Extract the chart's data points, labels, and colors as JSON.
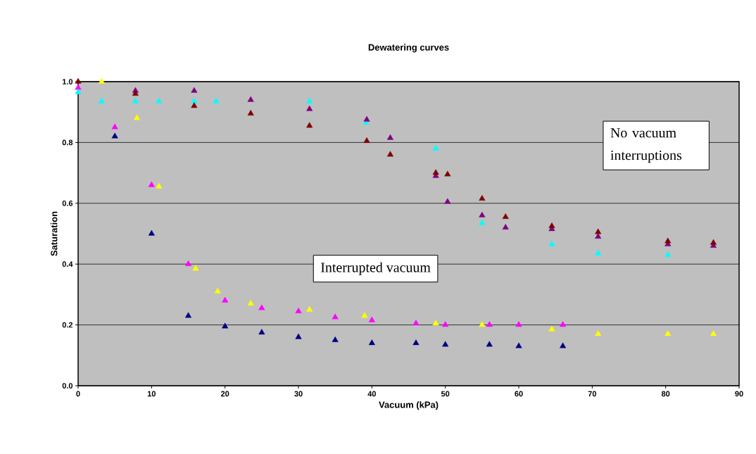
{
  "chart_data": {
    "type": "scatter",
    "title": "Dewatering curves",
    "xlabel": "Vacuum (kPa)",
    "ylabel": "Saturation",
    "marker": "triangle",
    "grid": "y",
    "xlim": [
      0,
      90
    ],
    "xticks": [
      0,
      10,
      20,
      30,
      40,
      50,
      60,
      70,
      80,
      90
    ],
    "ylim": [
      0,
      1
    ],
    "yticks": [
      {
        "value": 0,
        "label": "0.0"
      },
      0.2,
      0.4,
      0.6,
      0.8,
      {
        "value": 1,
        "label": "1.0"
      }
    ],
    "annotations": [
      "No vacuum interruptions",
      "Interrupted vacuum"
    ],
    "series": [
      {
        "color": "#000080",
        "x": [
          5,
          10,
          15,
          20,
          25,
          30,
          35,
          40,
          46,
          50,
          56,
          60,
          66
        ],
        "values": [
          0.82,
          0.5,
          0.23,
          0.195,
          0.175,
          0.16,
          0.15,
          0.14,
          0.14,
          0.135,
          0.135,
          0.13,
          0.13
        ]
      },
      {
        "color": "#ff00ff",
        "x": [
          0,
          5,
          10,
          15,
          20,
          25,
          30,
          35,
          40,
          46,
          50,
          56,
          60,
          66
        ],
        "values": [
          0.98,
          0.85,
          0.66,
          0.4,
          0.28,
          0.255,
          0.245,
          0.225,
          0.215,
          0.205,
          0.2,
          0.2,
          0.2,
          0.2
        ]
      },
      {
        "color": "#ffff00",
        "x": [
          3.2,
          8,
          11,
          16,
          19,
          23.5,
          31.5,
          39,
          48.7,
          55,
          64.5,
          70.8,
          80.3,
          86.5
        ],
        "values": [
          1.0,
          0.88,
          0.655,
          0.385,
          0.31,
          0.27,
          0.25,
          0.23,
          0.205,
          0.2,
          0.185,
          0.17,
          0.17,
          0.17
        ]
      },
      {
        "color": "#00ffff",
        "x": [
          0,
          3.2,
          7.8,
          11,
          15.8,
          18.8,
          31.5,
          39.2,
          48.7,
          55,
          64.5,
          70.8,
          80.3
        ],
        "values": [
          0.965,
          0.935,
          0.935,
          0.935,
          0.935,
          0.935,
          0.935,
          0.865,
          0.78,
          0.535,
          0.465,
          0.435,
          0.43
        ]
      },
      {
        "color": "#800080",
        "x": [
          7.8,
          15.8,
          23.5,
          31.5,
          39.3,
          42.5,
          48.7,
          50.3,
          55,
          58.2,
          64.5,
          70.8,
          80.3,
          86.5
        ],
        "values": [
          0.97,
          0.97,
          0.94,
          0.91,
          0.875,
          0.815,
          0.69,
          0.605,
          0.56,
          0.52,
          0.515,
          0.49,
          0.465,
          0.46
        ]
      },
      {
        "color": "#800000",
        "x": [
          0,
          7.8,
          15.8,
          23.5,
          31.5,
          39.3,
          42.5,
          48.7,
          50.3,
          55,
          58.2,
          64.5,
          70.8,
          80.3,
          86.5
        ],
        "values": [
          1.0,
          0.96,
          0.92,
          0.895,
          0.855,
          0.805,
          0.76,
          0.7,
          0.695,
          0.615,
          0.555,
          0.525,
          0.505,
          0.475,
          0.47
        ]
      }
    ]
  }
}
